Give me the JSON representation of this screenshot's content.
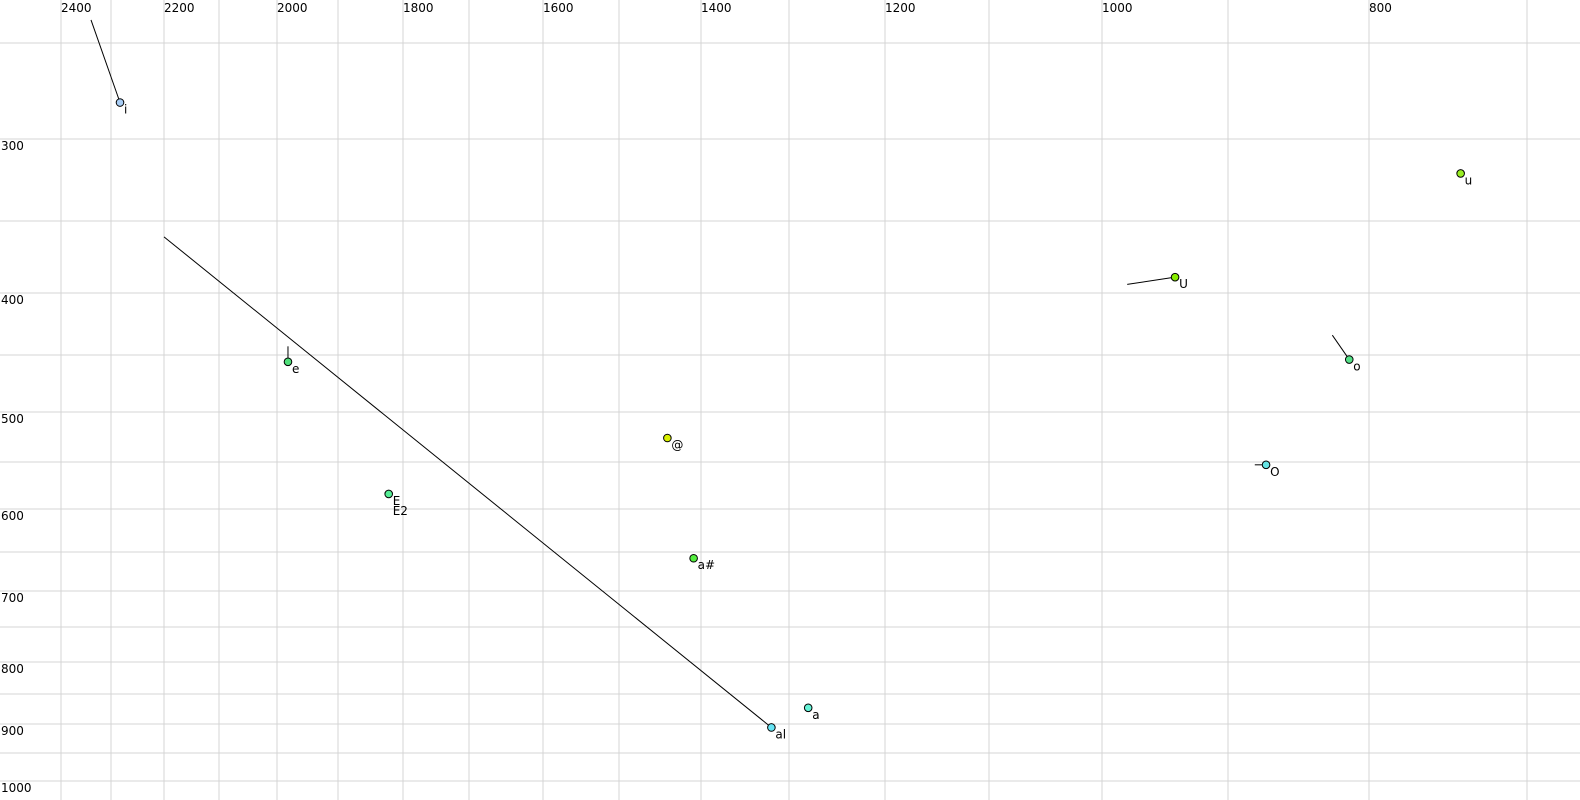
{
  "chart_data": {
    "type": "scatter",
    "title": "",
    "xlabel": "",
    "ylabel": "",
    "x_axis": {
      "reversed": true,
      "scale": "nonlinear (auditory)",
      "ticks": [
        2400,
        2200,
        2000,
        1800,
        1600,
        1400,
        1200,
        1000,
        800
      ],
      "tick_labels": [
        "2400",
        "2200",
        "2000",
        "1800",
        "1600",
        "1400",
        "1200",
        "1000",
        "800"
      ],
      "position": "top",
      "gridlines_every": 100
    },
    "y_axis": {
      "reversed": false,
      "scale": "nonlinear (auditory)",
      "ticks": [
        300,
        400,
        500,
        600,
        700,
        800,
        900,
        1000
      ],
      "tick_labels": [
        "300",
        "400",
        "500",
        "600",
        "700",
        "800",
        "900",
        "1000"
      ],
      "position": "left",
      "gridlines_every": 50
    },
    "grid": true,
    "points": [
      {
        "label": "i",
        "x": 2283,
        "y": 281,
        "color": "#a8cdf5",
        "trail_from": [
          2340,
          238
        ]
      },
      {
        "label": "e",
        "x": 1982,
        "y": 456,
        "color": "#4fe07a",
        "trail_from": [
          1982,
          443
        ]
      },
      {
        "label": "E",
        "label2": "E2",
        "x": 1822,
        "y": 584,
        "color": "#55ee95"
      },
      {
        "label": "@",
        "x": 1441,
        "y": 526,
        "color": "#d9f000"
      },
      {
        "label": "a#",
        "x": 1409,
        "y": 658,
        "color": "#55ee40"
      },
      {
        "label": "al",
        "x": 1320,
        "y": 906,
        "color": "#66e4f4",
        "trail_from": [
          2200,
          361
        ]
      },
      {
        "label": "a",
        "x": 1280,
        "y": 873,
        "color": "#66f4d8"
      },
      {
        "label": "U",
        "x": 942,
        "y": 389,
        "color": "#88ee00",
        "trail_from": [
          980,
          394
        ]
      },
      {
        "label": "u",
        "x": 742,
        "y": 321,
        "color": "#99ee22"
      },
      {
        "label": "o",
        "x": 814,
        "y": 454,
        "color": "#55e088",
        "trail_from": [
          826,
          434
        ]
      },
      {
        "label": "O",
        "x": 873,
        "y": 553,
        "color": "#66e4e4",
        "trail_from": [
          881,
          553
        ]
      }
    ]
  }
}
